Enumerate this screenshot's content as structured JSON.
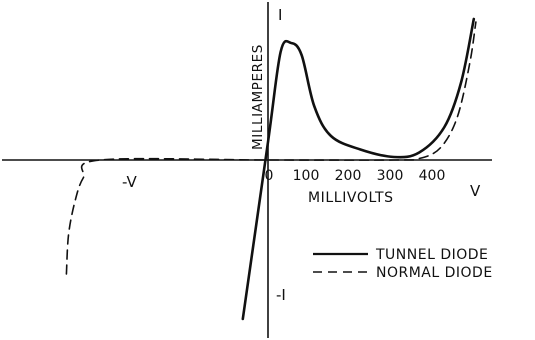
{
  "chart_data": {
    "type": "line",
    "title": "",
    "axes": {
      "y_axis_top_label": "I",
      "y_axis_bottom_label": "-I",
      "y_axis_title": "MILLIAMPERES",
      "x_axis_right_label": "V",
      "x_axis_left_label": "-V",
      "x_axis_title": "MILLIVOLTS"
    },
    "x_ticks": [
      "0",
      "100",
      "200",
      "300",
      "400"
    ],
    "xlim": [
      -470,
      560
    ],
    "ylim": [
      -5.5,
      5
    ],
    "series": [
      {
        "name": "TUNNEL DIODE",
        "style": "solid",
        "points": [
          [
            -60,
            -5.3
          ],
          [
            0,
            0.6
          ],
          [
            30,
            3.6
          ],
          [
            55,
            3.9
          ],
          [
            80,
            3.5
          ],
          [
            110,
            1.8
          ],
          [
            150,
            0.8
          ],
          [
            220,
            0.35
          ],
          [
            300,
            0.1
          ],
          [
            360,
            0.25
          ],
          [
            420,
            1.1
          ],
          [
            460,
            2.6
          ],
          [
            490,
            4.7
          ]
        ]
      },
      {
        "name": "NORMAL DIODE",
        "style": "dashed",
        "points": [
          [
            -480,
            -3.8
          ],
          [
            -475,
            -2.5
          ],
          [
            -460,
            -1.4
          ],
          [
            -440,
            -0.6
          ],
          [
            -400,
            0
          ],
          [
            0,
            0
          ],
          [
            300,
            0
          ],
          [
            360,
            0.05
          ],
          [
            410,
            0.4
          ],
          [
            450,
            1.4
          ],
          [
            480,
            3.2
          ],
          [
            495,
            4.6
          ]
        ]
      }
    ],
    "legend": {
      "placement": "bottom-right",
      "entries": [
        {
          "label": "TUNNEL DIODE",
          "style": "solid"
        },
        {
          "label": "NORMAL DIODE",
          "style": "dashed"
        }
      ]
    },
    "grid": false
  },
  "colors": {
    "ink": "#111111",
    "background": "#ffffff"
  }
}
